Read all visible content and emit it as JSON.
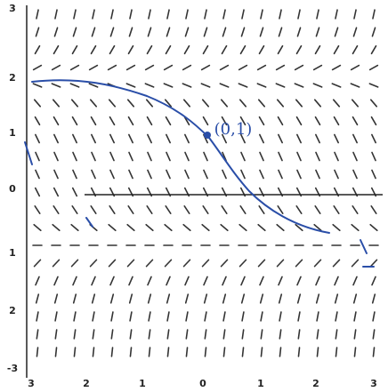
{
  "y_axis_labels": [
    "3",
    "2",
    "1",
    "0",
    "1",
    "2",
    "-3"
  ],
  "x_axis_labels": [
    "3",
    "2",
    "1",
    "0",
    "1",
    "2",
    "3"
  ],
  "annotation": "(0,1)"
}
